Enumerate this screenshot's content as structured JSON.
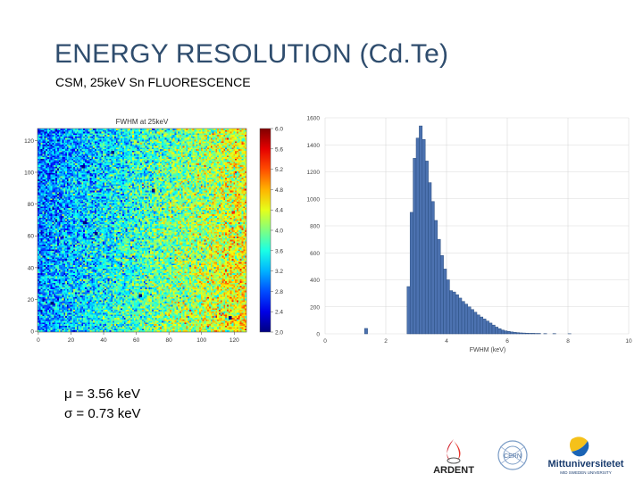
{
  "slide": {
    "title": "ENERGY RESOLUTION (Cd.Te)",
    "subtitle": "CSM, 25keV Sn FLUORESCENCE",
    "stat_mu": "μ = 3.56 keV",
    "stat_sigma": "σ = 0.73 keV"
  },
  "logos": {
    "ardent": "ARDENT",
    "cern": "CERN",
    "miun": "Mittuniversitetet",
    "miun_sub": "MID SWEDEN UNIVERSITY"
  },
  "chart_data": [
    {
      "type": "heatmap",
      "title": "FWHM at 25keV",
      "grid_size": 128,
      "x_ticks": [
        "0",
        "20",
        "40",
        "60",
        "80",
        "100",
        "120"
      ],
      "y_ticks": [
        "0",
        "20",
        "40",
        "60",
        "80",
        "100",
        "120"
      ],
      "colorbar_ticks": [
        "2.0",
        "2.4",
        "2.8",
        "3.2",
        "3.6",
        "4.0",
        "4.4",
        "4.8",
        "5.2",
        "5.6",
        "6.0"
      ],
      "vmin": 2.0,
      "vmax": 6.0,
      "dead_pixels": [
        [
          27,
          104
        ],
        [
          45,
          113
        ],
        [
          70,
          89
        ],
        [
          28,
          69
        ],
        [
          35,
          62
        ],
        [
          62,
          23
        ],
        [
          8,
          18
        ],
        [
          117,
          9
        ]
      ],
      "colors": {
        "low": "#00007f",
        "high": "#7f0000"
      }
    },
    {
      "type": "bar",
      "title": "",
      "xlabel": "FWHM (keV)",
      "ylabel": "",
      "x_ticks": [
        "0",
        "2",
        "4",
        "6",
        "8",
        "10"
      ],
      "y_ticks": [
        "0",
        "200",
        "400",
        "600",
        "800",
        "1000",
        "1200",
        "1400",
        "1600"
      ],
      "xlim": [
        0,
        10
      ],
      "ylim": [
        0,
        1600
      ],
      "bin_width": 0.1,
      "bins": [
        {
          "x": 1.3,
          "v": 40
        },
        {
          "x": 2.7,
          "v": 350
        },
        {
          "x": 2.8,
          "v": 900
        },
        {
          "x": 2.9,
          "v": 1300
        },
        {
          "x": 3.0,
          "v": 1450
        },
        {
          "x": 3.1,
          "v": 1540
        },
        {
          "x": 3.2,
          "v": 1440
        },
        {
          "x": 3.3,
          "v": 1280
        },
        {
          "x": 3.4,
          "v": 1120
        },
        {
          "x": 3.5,
          "v": 980
        },
        {
          "x": 3.6,
          "v": 840
        },
        {
          "x": 3.7,
          "v": 700
        },
        {
          "x": 3.8,
          "v": 580
        },
        {
          "x": 3.9,
          "v": 480
        },
        {
          "x": 4.0,
          "v": 400
        },
        {
          "x": 4.1,
          "v": 320
        },
        {
          "x": 4.2,
          "v": 310
        },
        {
          "x": 4.3,
          "v": 290
        },
        {
          "x": 4.4,
          "v": 265
        },
        {
          "x": 4.5,
          "v": 240
        },
        {
          "x": 4.6,
          "v": 220
        },
        {
          "x": 4.7,
          "v": 200
        },
        {
          "x": 4.8,
          "v": 180
        },
        {
          "x": 4.9,
          "v": 160
        },
        {
          "x": 5.0,
          "v": 140
        },
        {
          "x": 5.1,
          "v": 125
        },
        {
          "x": 5.2,
          "v": 110
        },
        {
          "x": 5.3,
          "v": 95
        },
        {
          "x": 5.4,
          "v": 80
        },
        {
          "x": 5.5,
          "v": 65
        },
        {
          "x": 5.6,
          "v": 50
        },
        {
          "x": 5.7,
          "v": 38
        },
        {
          "x": 5.8,
          "v": 28
        },
        {
          "x": 5.9,
          "v": 22
        },
        {
          "x": 6.0,
          "v": 18
        },
        {
          "x": 6.1,
          "v": 14
        },
        {
          "x": 6.2,
          "v": 11
        },
        {
          "x": 6.3,
          "v": 9
        },
        {
          "x": 6.4,
          "v": 7
        },
        {
          "x": 6.5,
          "v": 6
        },
        {
          "x": 6.6,
          "v": 5
        },
        {
          "x": 6.7,
          "v": 4
        },
        {
          "x": 6.8,
          "v": 4
        },
        {
          "x": 6.9,
          "v": 3
        },
        {
          "x": 7.0,
          "v": 3
        },
        {
          "x": 7.2,
          "v": 2
        },
        {
          "x": 7.5,
          "v": 2
        },
        {
          "x": 8.0,
          "v": 1
        }
      ],
      "colors": {
        "bar": "#4c72b0",
        "edge": "#2a4d80",
        "grid": "#d9d9d9"
      }
    }
  ]
}
